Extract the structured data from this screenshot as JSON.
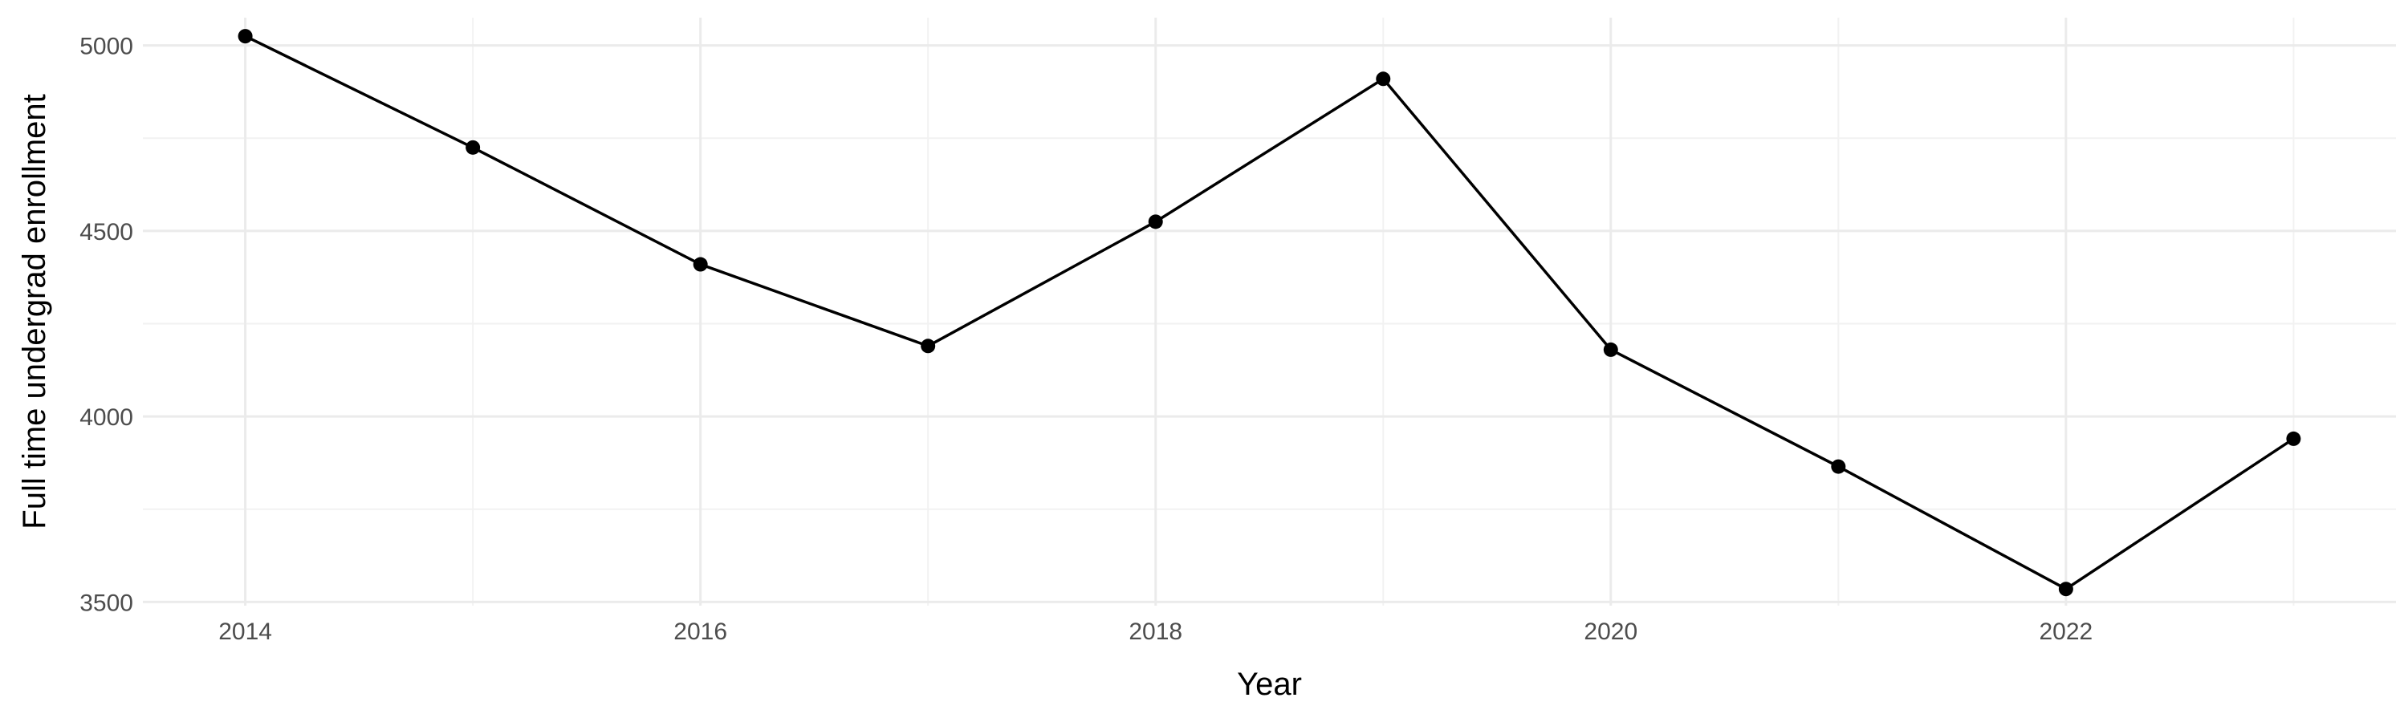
{
  "chart_data": {
    "type": "line",
    "title": "",
    "xlabel": "Year",
    "ylabel": "Full time undergrad enrollment",
    "x": [
      2014,
      2015,
      2016,
      2017,
      2018,
      2019,
      2020,
      2021,
      2022,
      2023
    ],
    "series": [
      {
        "values": [
          5025,
          4725,
          4410,
          4190,
          4525,
          4910,
          4180,
          3865,
          3535,
          3940
        ]
      }
    ],
    "xlim": [
      2013.55,
      2023.45
    ],
    "ylim": [
      3490,
      5075
    ],
    "x_ticks": [
      2014,
      2016,
      2018,
      2020,
      2022
    ],
    "y_ticks": [
      3500,
      4000,
      4500,
      5000
    ],
    "grid": true,
    "line_color": "#000000",
    "point_color": "#000000",
    "grid_color": "#ebebeb"
  }
}
